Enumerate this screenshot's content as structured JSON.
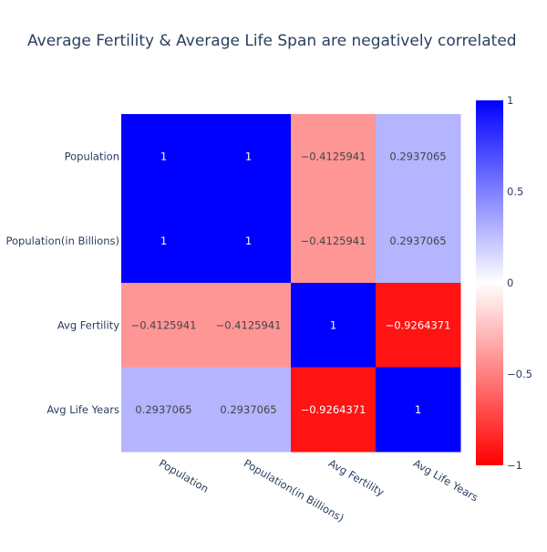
{
  "chart_data": {
    "type": "heatmap",
    "title": "Average Fertility & Average Life Span are negatively correlated",
    "x": [
      "Population",
      "Population(in Billions)",
      "Avg Fertility",
      "Avg Life Years"
    ],
    "y": [
      "Population",
      "Population(in Billions)",
      "Avg Fertility",
      "Avg Life Years"
    ],
    "z": [
      [
        1,
        1,
        -0.4125941,
        0.2937065
      ],
      [
        1,
        1,
        -0.4125941,
        0.2937065
      ],
      [
        -0.4125941,
        -0.4125941,
        1,
        -0.9264371
      ],
      [
        0.2937065,
        0.2937065,
        -0.9264371,
        1
      ]
    ],
    "z_text": [
      [
        "1",
        "1",
        "−0.4125941",
        "0.2937065"
      ],
      [
        "1",
        "1",
        "−0.4125941",
        "0.2937065"
      ],
      [
        "−0.4125941",
        "−0.4125941",
        "1",
        "−0.9264371"
      ],
      [
        "0.2937065",
        "0.2937065",
        "−0.9264371",
        "1"
      ]
    ],
    "zlim": [
      -1,
      1
    ],
    "colorscale": {
      "low": "#ff0000",
      "mid": "#ffffff",
      "high": "#0000ff"
    },
    "colorbar_ticks": [
      1,
      0.5,
      0,
      -0.5,
      -1
    ],
    "colorbar_tick_labels": [
      "1",
      "0.5",
      "0",
      "−0.5",
      "−1"
    ],
    "legend_position": "right",
    "grid": false
  }
}
